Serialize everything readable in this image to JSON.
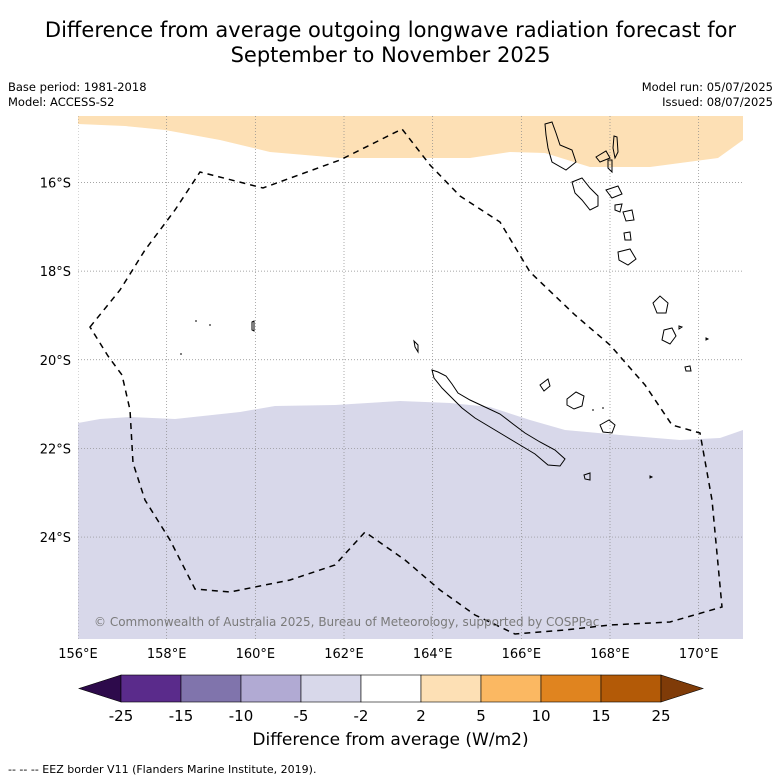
{
  "title": {
    "line1": "Difference from average outgoing longwave radiation forecast for",
    "line2": "September to November 2025"
  },
  "meta_left": {
    "base_period": "Base period: 1981-2018",
    "model": "Model: ACCESS-S2"
  },
  "meta_right": {
    "model_run": "Model run: 05/07/2025",
    "issued": "Issued: 08/07/2025"
  },
  "map": {
    "lon_range": [
      156,
      171
    ],
    "lat_range": [
      -26.3,
      -14.5
    ],
    "lon_ticks": [
      {
        "value": 156,
        "label": "156°E"
      },
      {
        "value": 158,
        "label": "158°E"
      },
      {
        "value": 160,
        "label": "160°E"
      },
      {
        "value": 162,
        "label": "162°E"
      },
      {
        "value": 164,
        "label": "164°E"
      },
      {
        "value": 166,
        "label": "166°E"
      },
      {
        "value": 168,
        "label": "168°E"
      },
      {
        "value": 170,
        "label": "170°E"
      }
    ],
    "lat_ticks": [
      {
        "value": -16,
        "label": "16°S"
      },
      {
        "value": -18,
        "label": "18°S"
      },
      {
        "value": -20,
        "label": "20°S"
      },
      {
        "value": -22,
        "label": "22°S"
      },
      {
        "value": -24,
        "label": "24°S"
      }
    ],
    "grid": true,
    "copyright": "© Commonwealth of Australia 2025, Bureau of Meteorology, supported by COSPPac",
    "regions": [
      {
        "name": "positive-2-to-5",
        "color": "#fde0b5"
      },
      {
        "name": "near-average",
        "color": "#ffffff"
      },
      {
        "name": "negative-5-to-2",
        "color": "#d8d8ea"
      }
    ],
    "eez_style": "dashed"
  },
  "colorbar": {
    "ticks": [
      "-25",
      "-15",
      "-10",
      "-5",
      "-2",
      "2",
      "5",
      "10",
      "15",
      "25"
    ],
    "colors": [
      "#5a2b8b",
      "#8074ac",
      "#b1aad3",
      "#d8d8ea",
      "#ffffff",
      "#fde0b5",
      "#fbb862",
      "#e0841f",
      "#b35a07"
    ],
    "min_extend_color": "#2d0a4b",
    "max_extend_color": "#7f3b08",
    "label": "Difference from average (W/m2)"
  },
  "footer": "--  --  -- EEZ border V11 (Flanders Marine Institute, 2019)."
}
